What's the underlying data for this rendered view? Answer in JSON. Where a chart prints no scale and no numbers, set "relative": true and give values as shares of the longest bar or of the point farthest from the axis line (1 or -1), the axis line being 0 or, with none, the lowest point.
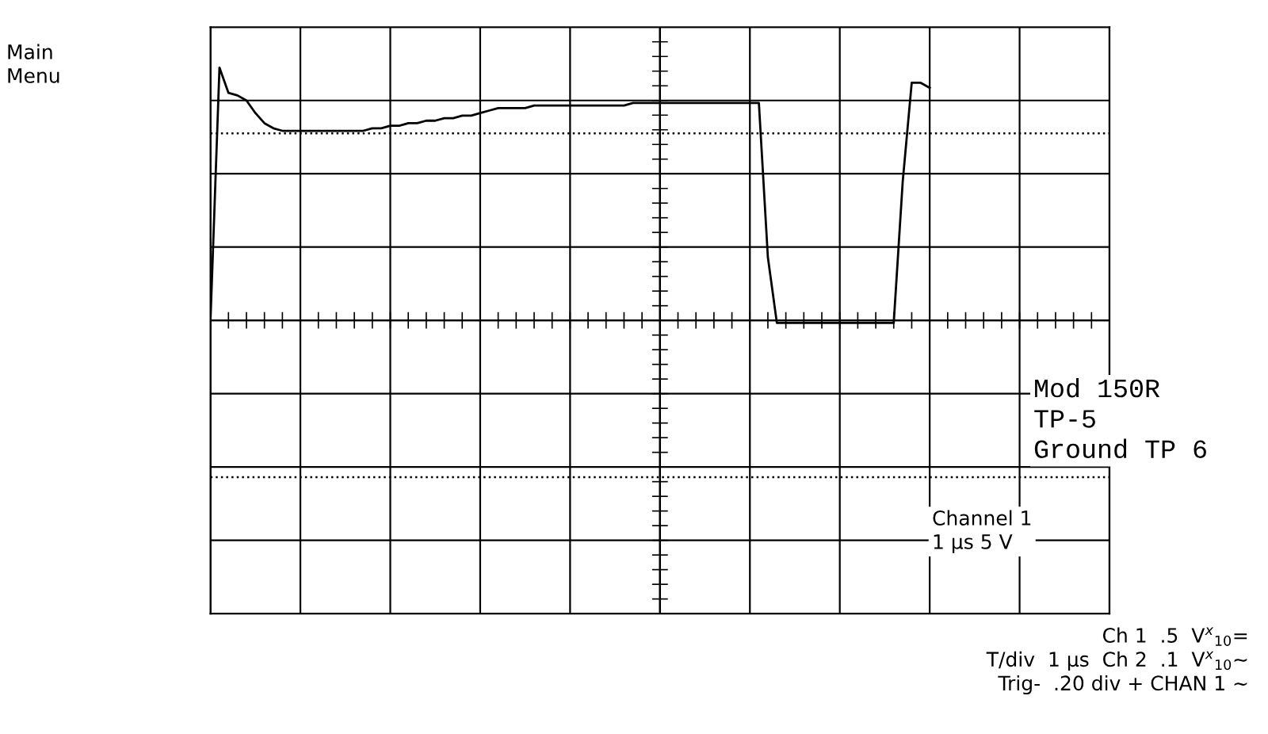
{
  "chart_data": {
    "type": "line",
    "relative": true,
    "grid": true,
    "tick_labels": false,
    "line_style": "solid",
    "marker": "none",
    "categories": [
      null,
      null,
      null,
      null,
      null,
      null,
      null,
      null,
      null,
      null,
      null,
      null,
      null,
      null,
      null,
      null,
      null,
      null,
      null,
      null,
      null,
      null,
      null,
      null,
      null,
      null,
      null,
      null,
      null,
      null,
      null,
      null,
      null,
      null,
      null,
      null,
      null,
      null,
      null,
      null,
      null,
      null,
      null,
      null,
      null,
      null,
      null,
      null,
      null,
      null,
      null,
      null,
      null,
      null,
      null,
      null,
      null,
      null,
      null,
      null,
      null,
      null,
      null,
      null,
      null,
      null,
      null,
      null,
      null,
      null,
      null,
      null,
      null,
      null,
      null,
      null,
      null,
      null,
      null,
      null,
      null,
      null,
      null,
      null,
      null,
      null,
      null,
      null,
      null,
      null,
      null,
      null,
      null,
      null,
      null,
      null,
      null,
      null,
      null,
      null,
      null
    ],
    "series": [
      {
        "color": "#000000",
        "values": [
          0,
          1,
          0.9,
          0.89,
          0.87,
          0.82,
          0.78,
          0.76,
          0.75,
          0.75,
          0.75,
          0.75,
          0.75,
          0.75,
          0.75,
          0.75,
          0.75,
          0.75,
          0.76,
          0.76,
          0.77,
          0.77,
          0.78,
          0.78,
          0.79,
          0.79,
          0.8,
          0.8,
          0.81,
          0.81,
          0.82,
          0.83,
          0.84,
          0.84,
          0.84,
          0.84,
          0.85,
          0.85,
          0.85,
          0.85,
          0.85,
          0.85,
          0.85,
          0.85,
          0.85,
          0.85,
          0.85,
          0.86,
          0.86,
          0.86,
          0.86,
          0.86,
          0.86,
          0.86,
          0.86,
          0.86,
          0.86,
          0.86,
          0.86,
          0.86,
          0.86,
          0.86,
          0.25,
          -0.01,
          -0.01,
          -0.01,
          -0.01,
          -0.01,
          -0.01,
          -0.01,
          -0.01,
          -0.01,
          -0.01,
          -0.01,
          -0.01,
          -0.01,
          -0.01,
          0.55,
          0.94,
          0.94,
          0.92,
          null,
          null,
          null,
          null,
          null,
          null,
          null,
          null,
          null,
          null,
          null,
          null,
          null,
          null,
          null,
          null,
          null,
          null,
          null,
          null
        ]
      }
    ],
    "ref_lines": [
      {
        "axis": "y",
        "value": 0.74,
        "line_style": "dotted",
        "color": "#000000"
      },
      {
        "axis": "y",
        "value": -0.62,
        "line_style": "dotted",
        "color": "#000000"
      }
    ],
    "annotations": [
      "Main\nMenu",
      "Mod 150R\nTP-5\nGround TP 6",
      "Channel 1\n1 μs 5 V",
      "Ch 1  .5  V$^{x}$$_{10}$=\nT/div  1 μs  Ch 2  .1  V$^{x}$$_{10}$~\nTrig-  .20 div + CHAN 1 ~"
    ]
  }
}
